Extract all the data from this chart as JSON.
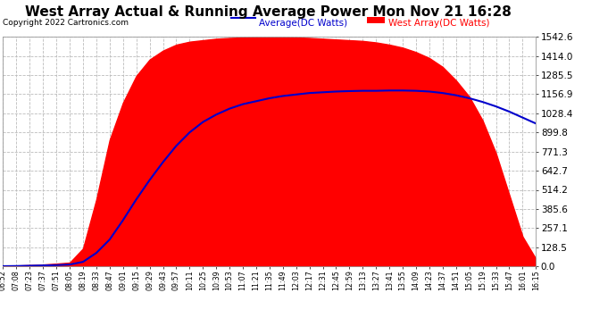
{
  "title": "West Array Actual & Running Average Power Mon Nov 21 16:28",
  "copyright": "Copyright 2022 Cartronics.com",
  "legend_avg": "Average(DC Watts)",
  "legend_west": "West Array(DC Watts)",
  "ymax": 1542.6,
  "ymin": 0.0,
  "yticks": [
    0.0,
    128.5,
    257.1,
    385.6,
    514.2,
    642.7,
    771.3,
    899.8,
    1028.4,
    1156.9,
    1285.5,
    1414.0,
    1542.6
  ],
  "fill_color": "#FF0000",
  "line_color": "#0000CC",
  "bg_color": "#FFFFFF",
  "grid_color": "#BBBBBB",
  "title_color": "#000000",
  "avg_color": "#0000CC",
  "west_color": "#FF0000",
  "time_labels": [
    "06:52",
    "07:08",
    "07:23",
    "07:37",
    "07:51",
    "08:05",
    "08:19",
    "08:33",
    "08:47",
    "09:01",
    "09:15",
    "09:29",
    "09:43",
    "09:57",
    "10:11",
    "10:25",
    "10:39",
    "10:53",
    "11:07",
    "11:21",
    "11:35",
    "11:49",
    "12:03",
    "12:17",
    "12:31",
    "12:45",
    "12:59",
    "13:13",
    "13:27",
    "13:41",
    "13:55",
    "14:09",
    "14:23",
    "14:37",
    "14:51",
    "15:05",
    "15:19",
    "15:33",
    "15:47",
    "16:01",
    "16:15"
  ],
  "west_values": [
    2,
    5,
    8,
    12,
    18,
    25,
    120,
    450,
    850,
    1100,
    1280,
    1390,
    1450,
    1490,
    1510,
    1520,
    1530,
    1535,
    1538,
    1540,
    1540,
    1540,
    1538,
    1535,
    1530,
    1525,
    1520,
    1515,
    1505,
    1490,
    1470,
    1440,
    1400,
    1340,
    1250,
    1140,
    980,
    760,
    480,
    200,
    50
  ],
  "avg_values": [
    1,
    2,
    4,
    6,
    8,
    12,
    30,
    90,
    180,
    310,
    450,
    580,
    700,
    810,
    900,
    970,
    1020,
    1060,
    1090,
    1110,
    1130,
    1145,
    1155,
    1165,
    1170,
    1175,
    1178,
    1180,
    1180,
    1182,
    1182,
    1180,
    1175,
    1165,
    1150,
    1130,
    1105,
    1075,
    1040,
    1000,
    960
  ]
}
